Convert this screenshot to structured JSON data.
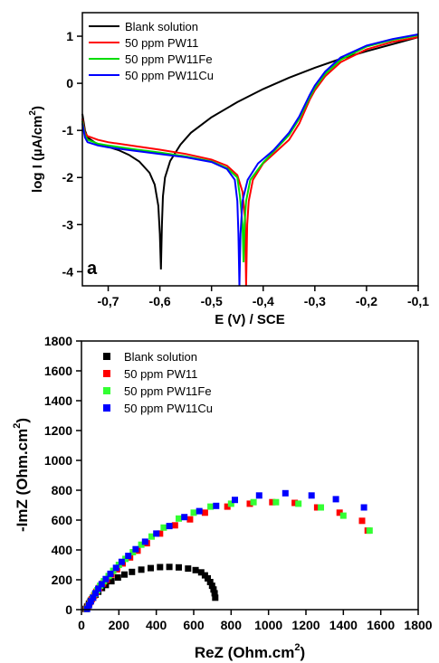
{
  "chart_data": [
    {
      "type": "line",
      "panel_label": "a",
      "xlabel": "E (V) / SCE",
      "ylabel_parts": [
        "log I (",
        "µ",
        "A/cm",
        "2",
        ")"
      ],
      "xlim": [
        -0.75,
        -0.1
      ],
      "ylim": [
        -4.3,
        1.5
      ],
      "xticks": [
        -0.7,
        -0.6,
        -0.5,
        -0.4,
        -0.3,
        -0.2,
        -0.1
      ],
      "xtick_labels": [
        "-0,7",
        "-0,6",
        "-0,5",
        "-0,4",
        "-0,3",
        "-0,2",
        "-0,1"
      ],
      "yticks": [
        -4,
        -3,
        -2,
        -1,
        0,
        1
      ],
      "ytick_labels": [
        "-4",
        "-3",
        "-2",
        "-1",
        "0",
        "1"
      ],
      "legend_position": "top-left",
      "series": [
        {
          "name": "Blank solution",
          "color": "#000000",
          "points": [
            [
              -0.75,
              -0.65
            ],
            [
              -0.745,
              -1.0
            ],
            [
              -0.74,
              -1.15
            ],
            [
              -0.72,
              -1.3
            ],
            [
              -0.7,
              -1.35
            ],
            [
              -0.68,
              -1.42
            ],
            [
              -0.66,
              -1.52
            ],
            [
              -0.64,
              -1.66
            ],
            [
              -0.62,
              -1.9
            ],
            [
              -0.61,
              -2.15
            ],
            [
              -0.603,
              -2.6
            ],
            [
              -0.6,
              -3.2
            ],
            [
              -0.598,
              -3.95
            ],
            [
              -0.596,
              -3.0
            ],
            [
              -0.594,
              -2.4
            ],
            [
              -0.59,
              -2.0
            ],
            [
              -0.58,
              -1.65
            ],
            [
              -0.56,
              -1.3
            ],
            [
              -0.54,
              -1.05
            ],
            [
              -0.5,
              -0.72
            ],
            [
              -0.45,
              -0.4
            ],
            [
              -0.4,
              -0.12
            ],
            [
              -0.35,
              0.12
            ],
            [
              -0.3,
              0.33
            ],
            [
              -0.25,
              0.52
            ],
            [
              -0.2,
              0.68
            ],
            [
              -0.15,
              0.83
            ],
            [
              -0.1,
              0.98
            ]
          ]
        },
        {
          "name": "50 ppm PW11",
          "color": "#ff0000",
          "points": [
            [
              -0.75,
              -0.75
            ],
            [
              -0.745,
              -1.05
            ],
            [
              -0.74,
              -1.12
            ],
            [
              -0.72,
              -1.2
            ],
            [
              -0.7,
              -1.25
            ],
            [
              -0.65,
              -1.33
            ],
            [
              -0.6,
              -1.41
            ],
            [
              -0.55,
              -1.5
            ],
            [
              -0.5,
              -1.62
            ],
            [
              -0.47,
              -1.75
            ],
            [
              -0.45,
              -1.95
            ],
            [
              -0.44,
              -2.3
            ],
            [
              -0.435,
              -2.9
            ],
            [
              -0.433,
              -4.3
            ],
            [
              -0.431,
              -3.0
            ],
            [
              -0.428,
              -2.5
            ],
            [
              -0.42,
              -2.05
            ],
            [
              -0.4,
              -1.7
            ],
            [
              -0.38,
              -1.5
            ],
            [
              -0.35,
              -1.2
            ],
            [
              -0.33,
              -0.85
            ],
            [
              -0.31,
              -0.35
            ],
            [
              -0.3,
              -0.15
            ],
            [
              -0.28,
              0.15
            ],
            [
              -0.25,
              0.45
            ],
            [
              -0.2,
              0.72
            ],
            [
              -0.15,
              0.88
            ],
            [
              -0.1,
              0.98
            ]
          ]
        },
        {
          "name": "50 ppm PW11Fe",
          "color": "#00dd00",
          "points": [
            [
              -0.75,
              -0.8
            ],
            [
              -0.745,
              -1.1
            ],
            [
              -0.74,
              -1.2
            ],
            [
              -0.72,
              -1.28
            ],
            [
              -0.7,
              -1.32
            ],
            [
              -0.65,
              -1.4
            ],
            [
              -0.6,
              -1.47
            ],
            [
              -0.55,
              -1.55
            ],
            [
              -0.5,
              -1.66
            ],
            [
              -0.47,
              -1.8
            ],
            [
              -0.45,
              -2.0
            ],
            [
              -0.445,
              -2.4
            ],
            [
              -0.44,
              -3.0
            ],
            [
              -0.438,
              -3.8
            ],
            [
              -0.436,
              -3.0
            ],
            [
              -0.433,
              -2.5
            ],
            [
              -0.425,
              -2.05
            ],
            [
              -0.4,
              -1.68
            ],
            [
              -0.38,
              -1.45
            ],
            [
              -0.35,
              -1.1
            ],
            [
              -0.33,
              -0.75
            ],
            [
              -0.31,
              -0.3
            ],
            [
              -0.3,
              -0.1
            ],
            [
              -0.28,
              0.2
            ],
            [
              -0.25,
              0.5
            ],
            [
              -0.2,
              0.78
            ],
            [
              -0.15,
              0.92
            ],
            [
              -0.1,
              1.02
            ]
          ]
        },
        {
          "name": "50 ppm PW11Cu",
          "color": "#0000ff",
          "points": [
            [
              -0.75,
              -0.85
            ],
            [
              -0.745,
              -1.15
            ],
            [
              -0.74,
              -1.25
            ],
            [
              -0.72,
              -1.32
            ],
            [
              -0.7,
              -1.36
            ],
            [
              -0.65,
              -1.43
            ],
            [
              -0.6,
              -1.5
            ],
            [
              -0.55,
              -1.57
            ],
            [
              -0.5,
              -1.67
            ],
            [
              -0.47,
              -1.82
            ],
            [
              -0.455,
              -2.05
            ],
            [
              -0.45,
              -2.5
            ],
            [
              -0.448,
              -3.2
            ],
            [
              -0.446,
              -4.3
            ],
            [
              -0.444,
              -3.2
            ],
            [
              -0.44,
              -2.5
            ],
            [
              -0.43,
              -2.05
            ],
            [
              -0.41,
              -1.7
            ],
            [
              -0.38,
              -1.42
            ],
            [
              -0.35,
              -1.05
            ],
            [
              -0.33,
              -0.7
            ],
            [
              -0.31,
              -0.25
            ],
            [
              -0.3,
              -0.05
            ],
            [
              -0.28,
              0.25
            ],
            [
              -0.25,
              0.55
            ],
            [
              -0.2,
              0.8
            ],
            [
              -0.15,
              0.94
            ],
            [
              -0.1,
              1.04
            ]
          ]
        }
      ]
    },
    {
      "type": "scatter",
      "xlabel_parts": [
        "ReZ (Ohm.cm",
        "2",
        ")"
      ],
      "ylabel_parts": [
        "-ImZ (Ohm.cm",
        "2",
        ")"
      ],
      "xlim": [
        0,
        1800
      ],
      "ylim": [
        0,
        1800
      ],
      "xticks": [
        0,
        200,
        400,
        600,
        800,
        1000,
        1200,
        1400,
        1600,
        1800
      ],
      "yticks": [
        0,
        200,
        400,
        600,
        800,
        1000,
        1200,
        1400,
        1600,
        1800
      ],
      "legend_position": "top-left",
      "series": [
        {
          "name": "Blank solution",
          "color": "#000000",
          "points": [
            [
              22,
              5
            ],
            [
              30,
              20
            ],
            [
              40,
              40
            ],
            [
              50,
              60
            ],
            [
              62,
              80
            ],
            [
              75,
              100
            ],
            [
              90,
              120
            ],
            [
              110,
              145
            ],
            [
              130,
              165
            ],
            [
              160,
              190
            ],
            [
              195,
              215
            ],
            [
              230,
              235
            ],
            [
              270,
              253
            ],
            [
              320,
              268
            ],
            [
              370,
              278
            ],
            [
              420,
              285
            ],
            [
              470,
              286
            ],
            [
              520,
              283
            ],
            [
              570,
              275
            ],
            [
              610,
              265
            ],
            [
              640,
              250
            ],
            [
              660,
              230
            ],
            [
              675,
              210
            ],
            [
              688,
              185
            ],
            [
              698,
              160
            ],
            [
              706,
              135
            ],
            [
              712,
              110
            ],
            [
              715,
              80
            ]
          ]
        },
        {
          "name": "50 ppm PW11",
          "color": "#ff0000",
          "points": [
            [
              25,
              5
            ],
            [
              35,
              25
            ],
            [
              45,
              50
            ],
            [
              55,
              70
            ],
            [
              68,
              95
            ],
            [
              80,
              120
            ],
            [
              95,
              145
            ],
            [
              115,
              175
            ],
            [
              135,
              200
            ],
            [
              160,
              235
            ],
            [
              190,
              270
            ],
            [
              220,
              310
            ],
            [
              260,
              350
            ],
            [
              300,
              395
            ],
            [
              350,
              445
            ],
            [
              420,
              510
            ],
            [
              500,
              565
            ],
            [
              580,
              605
            ],
            [
              660,
              650
            ],
            [
              780,
              690
            ],
            [
              900,
              710
            ],
            [
              1020,
              720
            ],
            [
              1140,
              715
            ],
            [
              1260,
              685
            ],
            [
              1380,
              650
            ],
            [
              1500,
              595
            ],
            [
              1530,
              530
            ]
          ]
        },
        {
          "name": "50 ppm PW11Fe",
          "color": "#33ff33",
          "points": [
            [
              28,
              5
            ],
            [
              38,
              30
            ],
            [
              48,
              55
            ],
            [
              60,
              80
            ],
            [
              72,
              105
            ],
            [
              85,
              130
            ],
            [
              100,
              160
            ],
            [
              120,
              190
            ],
            [
              145,
              225
            ],
            [
              170,
              260
            ],
            [
              200,
              300
            ],
            [
              235,
              340
            ],
            [
              275,
              385
            ],
            [
              320,
              435
            ],
            [
              375,
              490
            ],
            [
              440,
              550
            ],
            [
              520,
              610
            ],
            [
              600,
              650
            ],
            [
              690,
              690
            ],
            [
              800,
              710
            ],
            [
              920,
              720
            ],
            [
              1040,
              720
            ],
            [
              1160,
              710
            ],
            [
              1280,
              685
            ],
            [
              1400,
              630
            ],
            [
              1540,
              530
            ]
          ]
        },
        {
          "name": "50 ppm PW11Cu",
          "color": "#0000ff",
          "points": [
            [
              30,
              5
            ],
            [
              40,
              30
            ],
            [
              50,
              55
            ],
            [
              62,
              80
            ],
            [
              75,
              110
            ],
            [
              90,
              140
            ],
            [
              108,
              170
            ],
            [
              130,
              205
            ],
            [
              155,
              240
            ],
            [
              185,
              280
            ],
            [
              215,
              320
            ],
            [
              250,
              360
            ],
            [
              290,
              405
            ],
            [
              340,
              455
            ],
            [
              400,
              510
            ],
            [
              470,
              560
            ],
            [
              550,
              620
            ],
            [
              630,
              660
            ],
            [
              720,
              695
            ],
            [
              820,
              735
            ],
            [
              950,
              765
            ],
            [
              1090,
              780
            ],
            [
              1230,
              765
            ],
            [
              1360,
              740
            ],
            [
              1510,
              685
            ]
          ]
        }
      ]
    }
  ]
}
